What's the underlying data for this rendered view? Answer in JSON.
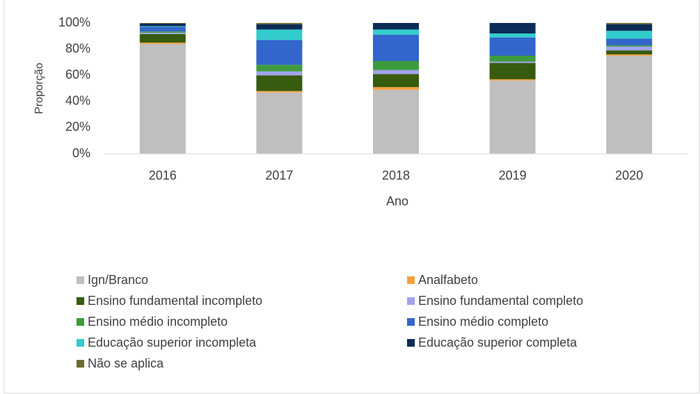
{
  "chart_data": {
    "type": "stacked_bar",
    "categories": [
      "2016",
      "2017",
      "2018",
      "2019",
      "2020"
    ],
    "series": [
      {
        "name": "Ign/Branco",
        "color": "#bfbfbf",
        "values": [
          84,
          47,
          49,
          56,
          75
        ]
      },
      {
        "name": "Analfabeto",
        "color": "#f5a03c",
        "values": [
          1,
          1,
          2,
          1,
          1
        ]
      },
      {
        "name": "Ensino fundamental incompleto",
        "color": "#375b0f",
        "values": [
          6.5,
          12,
          10,
          12.5,
          3
        ]
      },
      {
        "name": "Ensino fundamental completo",
        "color": "#a3a3f0",
        "values": [
          1,
          3,
          3,
          1,
          3
        ]
      },
      {
        "name": "Ensino médio incompleto",
        "color": "#3d9b3d",
        "values": [
          1,
          5,
          7,
          4.5,
          1
        ]
      },
      {
        "name": "Ensino médio completo",
        "color": "#3366cc",
        "values": [
          3.5,
          19,
          20,
          14,
          5
        ]
      },
      {
        "name": "Educação superior incompleta",
        "color": "#33cccc",
        "values": [
          0.5,
          8,
          4,
          3,
          6
        ]
      },
      {
        "name": "Educação superior completa",
        "color": "#0c2d57",
        "values": [
          2,
          4,
          5,
          8,
          5
        ]
      },
      {
        "name": "Não se aplica",
        "color": "#6b6b2e",
        "values": [
          0.5,
          1,
          0,
          0,
          1
        ]
      }
    ],
    "xlabel": "Ano",
    "ylabel": "Proporção",
    "ylim": [
      0,
      100
    ],
    "yticks": [
      {
        "value": 0,
        "label": "0%"
      },
      {
        "value": 20,
        "label": "20%"
      },
      {
        "value": 40,
        "label": "40%"
      },
      {
        "value": 60,
        "label": "60%"
      },
      {
        "value": 80,
        "label": "80%"
      },
      {
        "value": 100,
        "label": "100%"
      }
    ],
    "legend": "bottom"
  }
}
